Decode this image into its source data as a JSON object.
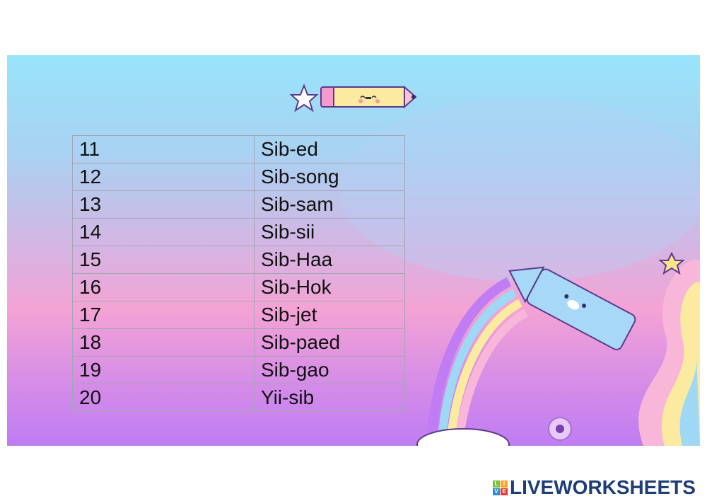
{
  "table": {
    "rows": [
      {
        "number": "11",
        "word": "Sib-ed"
      },
      {
        "number": "12",
        "word": "Sib-song"
      },
      {
        "number": "13",
        "word": "Sib-sam"
      },
      {
        "number": "14",
        "word": "Sib-sii"
      },
      {
        "number": "15",
        "word": "Sib-Haa"
      },
      {
        "number": "16",
        "word": "Sib-Hok"
      },
      {
        "number": "17",
        "word": "Sib-jet"
      },
      {
        "number": "18",
        "word": "Sib-paed"
      },
      {
        "number": "19",
        "word": "Sib-gao"
      },
      {
        "number": "20",
        "word": "Yii-sib"
      }
    ]
  },
  "footer": {
    "logo_text": "LIVEWORKSHEETS",
    "logo_letters": [
      "L",
      "I",
      "V",
      "E"
    ]
  },
  "colors": {
    "logo": "#1e3e78",
    "pencil": "#fbeaa0",
    "outline": "#5b3a8c"
  }
}
